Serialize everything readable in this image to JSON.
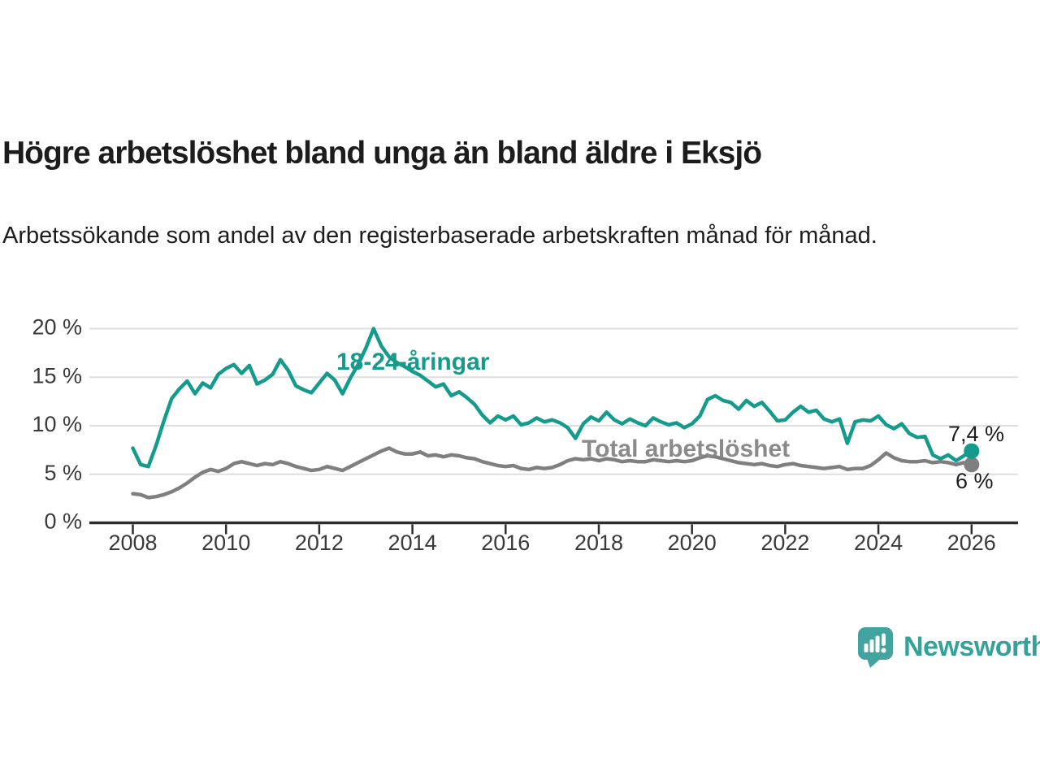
{
  "page": {
    "background": "#ffffff"
  },
  "header": {
    "title": "Högre arbetslöshet bland unga än bland äldre i Eksjö",
    "subtitle": "Arbetssökande som andel av den registerbaserade arbetskraften månad för månad."
  },
  "chart_data": {
    "type": "line",
    "title": "Högre arbetslöshet bland unga än bland äldre i Eksjö",
    "subtitle": "Arbetssökande som andel av den registerbaserade arbetskraften månad för månad.",
    "unit": "%",
    "grid": "horizontal-only",
    "legend_position": "inline-labels-on-chart",
    "x_axis": {
      "tick_years": [
        2008,
        2010,
        2012,
        2014,
        2016,
        2018,
        2020,
        2022,
        2024,
        2026
      ]
    },
    "y_axis": {
      "ticks": [
        0,
        5,
        10,
        15,
        20
      ],
      "tick_labels": [
        "0 %",
        "5 %",
        "10 %",
        "15 %",
        "20 %"
      ],
      "range": [
        0,
        20
      ]
    },
    "sampling": "one value per 2 months",
    "series": [
      {
        "name": "18-24-åringar",
        "color": "#149B8C",
        "label_color": "#149B8C",
        "start_year": 2008,
        "points_per_year": 6,
        "end_value_label": "7,4 %",
        "values": [
          7.7,
          6.0,
          5.8,
          8.0,
          10.5,
          12.8,
          13.8,
          14.6,
          13.3,
          14.4,
          13.9,
          15.3,
          15.9,
          16.3,
          15.4,
          16.2,
          14.3,
          14.7,
          15.3,
          16.8,
          15.7,
          14.1,
          13.7,
          13.4,
          14.4,
          15.4,
          14.7,
          13.3,
          14.9,
          16.3,
          18.0,
          20.0,
          18.2,
          17.1,
          16.5,
          16.1,
          15.6,
          15.2,
          14.6,
          14.0,
          14.3,
          13.1,
          13.5,
          12.9,
          12.2,
          11.1,
          10.3,
          11.0,
          10.6,
          11.0,
          10.1,
          10.3,
          10.8,
          10.4,
          10.6,
          10.3,
          9.8,
          8.7,
          10.2,
          10.9,
          10.5,
          11.4,
          10.6,
          10.2,
          10.7,
          10.3,
          10.0,
          10.8,
          10.4,
          10.1,
          10.3,
          9.8,
          10.2,
          11.0,
          12.7,
          13.1,
          12.6,
          12.4,
          11.7,
          12.6,
          12.0,
          12.4,
          11.5,
          10.5,
          10.6,
          11.4,
          12.0,
          11.4,
          11.6,
          10.7,
          10.4,
          10.7,
          8.2,
          10.4,
          10.6,
          10.5,
          11.0,
          10.1,
          9.7,
          10.2,
          9.2,
          8.8,
          8.9,
          7.0,
          6.6,
          7.0,
          6.4,
          6.9,
          7.4
        ]
      },
      {
        "name": "Total arbetslöshet",
        "color": "#7f7f7f",
        "label_color": "#8a8a8a",
        "start_year": 2008,
        "points_per_year": 6,
        "end_value_label": "6 %",
        "values": [
          3.0,
          2.9,
          2.6,
          2.7,
          2.9,
          3.2,
          3.6,
          4.1,
          4.7,
          5.2,
          5.5,
          5.3,
          5.6,
          6.1,
          6.3,
          6.1,
          5.9,
          6.1,
          6.0,
          6.3,
          6.1,
          5.8,
          5.6,
          5.4,
          5.5,
          5.8,
          5.6,
          5.4,
          5.8,
          6.2,
          6.6,
          7.0,
          7.4,
          7.7,
          7.3,
          7.1,
          7.1,
          7.3,
          6.9,
          7.0,
          6.8,
          7.0,
          6.9,
          6.7,
          6.6,
          6.3,
          6.1,
          5.9,
          5.8,
          5.9,
          5.6,
          5.5,
          5.7,
          5.6,
          5.7,
          6.0,
          6.4,
          6.6,
          6.5,
          6.6,
          6.4,
          6.6,
          6.5,
          6.3,
          6.4,
          6.3,
          6.3,
          6.5,
          6.4,
          6.3,
          6.4,
          6.3,
          6.4,
          6.7,
          6.9,
          6.8,
          6.6,
          6.4,
          6.2,
          6.1,
          6.0,
          6.1,
          5.9,
          5.8,
          6.0,
          6.1,
          5.9,
          5.8,
          5.7,
          5.6,
          5.7,
          5.8,
          5.5,
          5.6,
          5.6,
          5.9,
          6.5,
          7.2,
          6.7,
          6.4,
          6.3,
          6.3,
          6.4,
          6.2,
          6.3,
          6.2,
          6.0,
          6.2,
          6.0
        ]
      }
    ],
    "annotations": {
      "end_labels": [
        "7,4 %",
        "6 %"
      ]
    },
    "colors": {
      "grid": "#dfdfdf",
      "axis_line": "#2e2e2e",
      "axis_text": "#3a3a3a",
      "end_label_text": "#1c1c1c"
    }
  },
  "branding": {
    "logo_text": "Newsworthy",
    "logo_text_color": "#35A19B",
    "icon_name": "newsworthy-speech-bubble-bar-chart-icon",
    "icon_color": "#43A39E"
  }
}
